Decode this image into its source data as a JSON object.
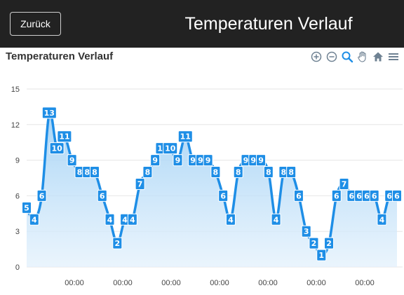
{
  "header": {
    "back_label": "Zurück",
    "title": "Temperaturen Verlauf"
  },
  "toolbar": {
    "icons": [
      "zoom-in-icon",
      "zoom-out-icon",
      "zoom-selection-icon",
      "pan-hand-icon",
      "home-reset-icon",
      "menu-icon"
    ]
  },
  "colors": {
    "line": "#1e8ee6",
    "label_bg": "#1e8ee6",
    "area_top": "#9fd0f5",
    "header_bg": "#222222"
  },
  "chart_data": {
    "type": "area",
    "title": "Temperaturen Verlauf",
    "xlabel": "",
    "ylabel": "",
    "ylim": [
      0,
      15
    ],
    "yticks": [
      0,
      3,
      6,
      9,
      12,
      15
    ],
    "xtick_labels": [
      "00:00",
      "00:00",
      "00:00",
      "00:00",
      "00:00",
      "00:00",
      "00:00"
    ],
    "grid": true,
    "series": [
      {
        "values": [
          5,
          4,
          6,
          13,
          10,
          11,
          9,
          8,
          8,
          8,
          6,
          4,
          2,
          4,
          4,
          7,
          8,
          9,
          10,
          10,
          9,
          11,
          9,
          9,
          9,
          8,
          6,
          4,
          8,
          9,
          9,
          9,
          8,
          4,
          8,
          8,
          6,
          3,
          2,
          1,
          2,
          6,
          7,
          6,
          6,
          6,
          6,
          4,
          6,
          6
        ]
      }
    ]
  }
}
